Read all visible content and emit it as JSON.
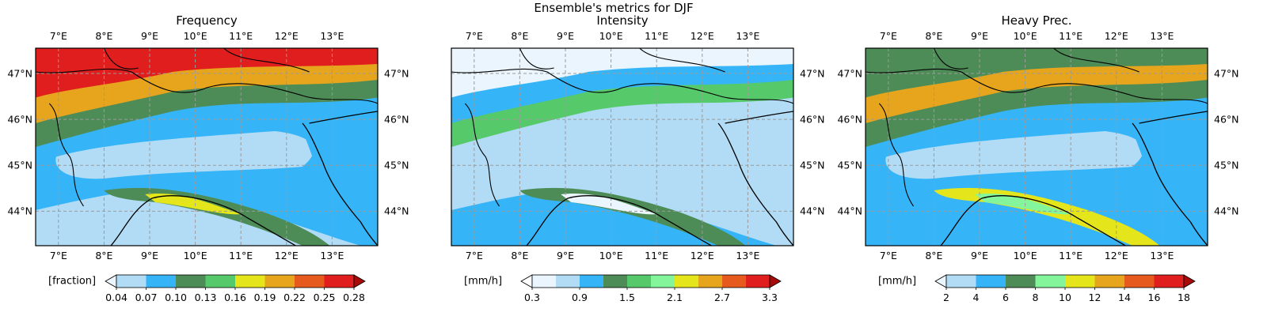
{
  "figure_title": "Ensemble's metrics for DJF",
  "lon_ticks": [
    "7°E",
    "8°E",
    "9°E",
    "10°E",
    "11°E",
    "12°E",
    "13°E"
  ],
  "lat_ticks": [
    "47°N",
    "46°N",
    "45°N",
    "44°N"
  ],
  "map_extent": {
    "lon_min": 6.5,
    "lon_max": 14.0,
    "lat_min": 43.25,
    "lat_max": 47.55
  },
  "colors": {
    "sea_blue_light": "#b2dcf6",
    "blue": "#35b5f8",
    "dark_green": "#4d8c57",
    "green": "#56c96b",
    "yellow": "#e4e51a",
    "orange": "#e7a51d",
    "red_orange": "#e75a1d",
    "red": "#e01e1e",
    "dark_red": "#a60a0a",
    "near_white": "#eaf5fd",
    "light_green": "#85f59c"
  },
  "panels": [
    {
      "title": "Frequency",
      "unit": "[fraction]",
      "colorbar_ticks": [
        "0.04",
        "0.07",
        "0.10",
        "0.13",
        "0.16",
        "0.19",
        "0.22",
        "0.25",
        "0.28"
      ],
      "colorbar_colors": [
        "#b2dcf6",
        "#35b5f8",
        "#4d8c57",
        "#56c96b",
        "#e4e51a",
        "#e7a51d",
        "#e75a1d",
        "#e01e1e"
      ],
      "under_color": "#eaf5fd",
      "over_color": "#a60a0a"
    },
    {
      "title": "Intensity",
      "unit": "[mm/h]",
      "colorbar_ticks": [
        "0.3",
        "0.9",
        "1.5",
        "2.1",
        "2.7",
        "3.3"
      ],
      "colorbar_colors": [
        "#eaf5fd",
        "#b2dcf6",
        "#35b5f8",
        "#4d8c57",
        "#56c96b",
        "#85f59c",
        "#e4e51a",
        "#e7a51d",
        "#e75a1d",
        "#e01e1e"
      ],
      "under_color": "#ffffff",
      "over_color": "#a60a0a"
    },
    {
      "title": "Heavy Prec.",
      "unit": "[mm/h]",
      "colorbar_ticks": [
        "2",
        "4",
        "6",
        "8",
        "10",
        "12",
        "14",
        "16",
        "18"
      ],
      "colorbar_colors": [
        "#b2dcf6",
        "#35b5f8",
        "#4d8c57",
        "#85f59c",
        "#e4e51a",
        "#e7a51d",
        "#e75a1d",
        "#e01e1e"
      ],
      "under_color": "#eaf5fd",
      "over_color": "#a60a0a"
    }
  ]
}
